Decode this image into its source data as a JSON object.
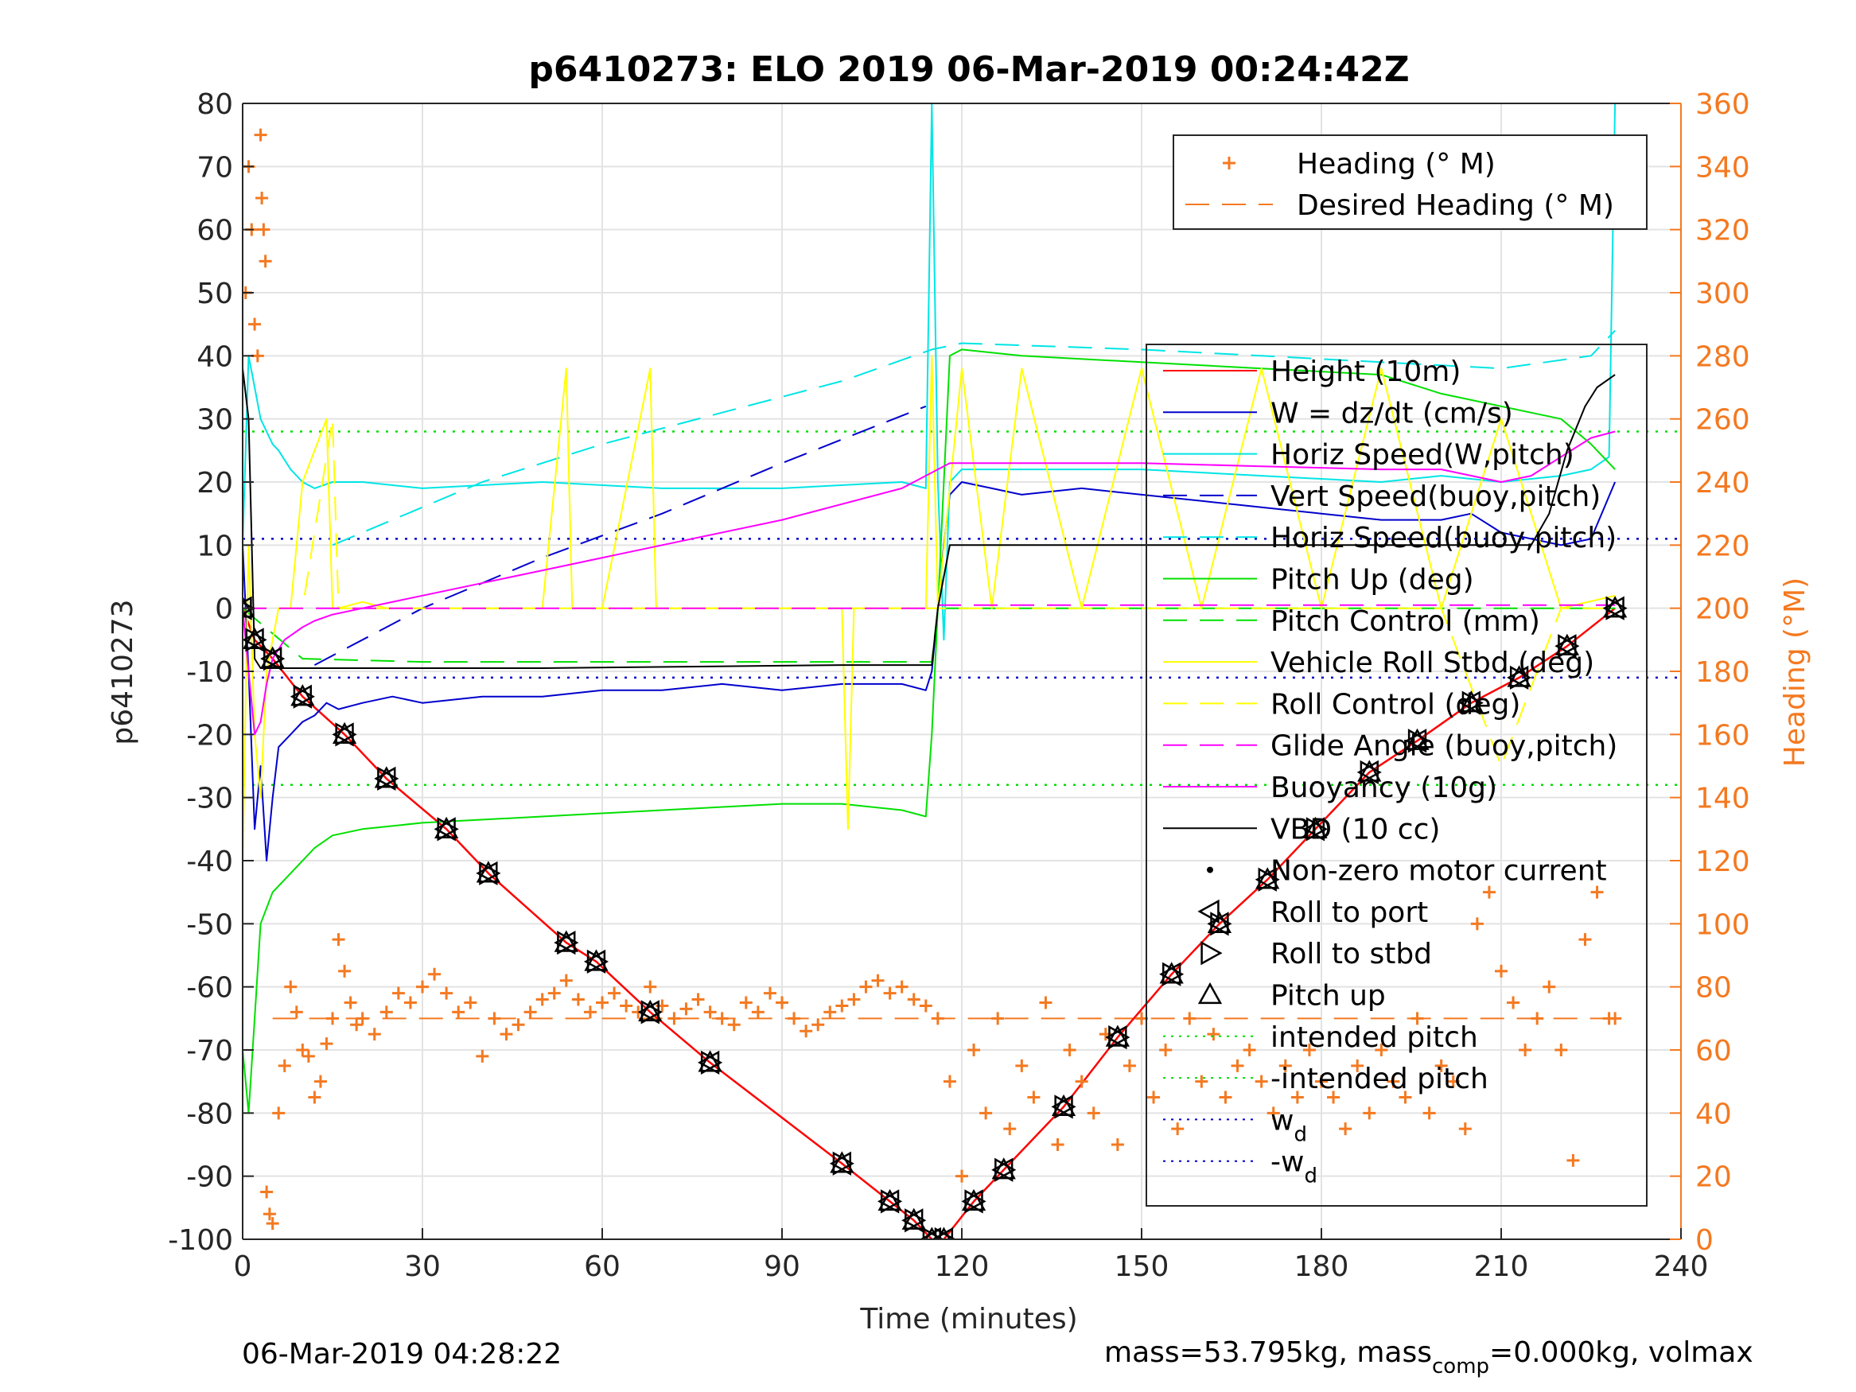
{
  "chart_data": {
    "type": "line",
    "title": "p6410273: ELO 2019 06-Mar-2019 00:24:42Z",
    "xlabel": "Time (minutes)",
    "ylabel": "p6410273",
    "ylabel_right": "Heading (°M)",
    "xlim": [
      0,
      240
    ],
    "ylim": [
      -100,
      80
    ],
    "ylim_right": [
      0,
      360
    ],
    "x_ticks": [
      "0",
      "30",
      "60",
      "90",
      "120",
      "150",
      "180",
      "210",
      "240"
    ],
    "y_ticks": [
      "-100",
      "-90",
      "-80",
      "-70",
      "-60",
      "-50",
      "-40",
      "-30",
      "-20",
      "-10",
      "0",
      "10",
      "20",
      "30",
      "40",
      "50",
      "60",
      "70",
      "80"
    ],
    "y_ticks_right": [
      "0",
      "20",
      "40",
      "60",
      "80",
      "100",
      "120",
      "140",
      "160",
      "180",
      "200",
      "220",
      "240",
      "260",
      "280",
      "300",
      "320",
      "340",
      "360"
    ],
    "grid": true,
    "legend_placement_right_axis": "top-right",
    "legend_placement_left_axis": "right",
    "footer_left": "06-Mar-2019 04:28:22",
    "footer_right": {
      "prefix": "mass=53.795kg, mass",
      "sub": "comp",
      "suffix": "=0.000kg, volmax"
    },
    "colors": {
      "height": "#ff0000",
      "w": "#0000cc",
      "horiz_speed": "#00e5e5",
      "pitch": "#00e000",
      "roll": "#ffff00",
      "glide": "#ff00ff",
      "vbd": "#000000",
      "heading": "#f47920",
      "right_axis": "#f47920"
    },
    "legend_right_axis": [
      {
        "label": "Heading (° M)",
        "color": "#f47920",
        "style": "plus"
      },
      {
        "label": "Desired Heading (° M)",
        "color": "#f47920",
        "style": "dashed"
      }
    ],
    "legend_left_axis": [
      {
        "label": "Height (10m)",
        "color": "#ff0000",
        "style": "solid"
      },
      {
        "label": "W = dz/dt (cm/s)",
        "color": "#0000cc",
        "style": "solid"
      },
      {
        "label": "Horiz Speed(W,pitch)",
        "color": "#00e5e5",
        "style": "solid"
      },
      {
        "label": "Vert Speed(buoy,pitch)",
        "color": "#0000cc",
        "style": "dashed"
      },
      {
        "label": "Horiz Speed(buoy,pitch)",
        "color": "#00e5e5",
        "style": "dashed"
      },
      {
        "label": "Pitch Up (deg)",
        "color": "#00e000",
        "style": "solid"
      },
      {
        "label": "Pitch Control (mm)",
        "color": "#00e000",
        "style": "dashed"
      },
      {
        "label": "Vehicle Roll Stbd (deg)",
        "color": "#ffff00",
        "style": "solid"
      },
      {
        "label": "Roll Control (deg)",
        "color": "#ffff00",
        "style": "dashed"
      },
      {
        "label": "Glide Angle (buoy,pitch)",
        "color": "#ff00ff",
        "style": "dashed"
      },
      {
        "label": "Buoyancy (10g)",
        "color": "#ff00ff",
        "style": "solid"
      },
      {
        "label": "VBD (10 cc)",
        "color": "#000000",
        "style": "solid"
      },
      {
        "label": "Non-zero motor current",
        "color": "#000000",
        "style": "dot"
      },
      {
        "label": "Roll to port",
        "color": "#000000",
        "style": "tri-left"
      },
      {
        "label": "Roll to stbd",
        "color": "#000000",
        "style": "tri-right"
      },
      {
        "label": "Pitch up",
        "color": "#000000",
        "style": "tri-up"
      },
      {
        "label": "intended pitch",
        "color": "#00e000",
        "style": "dotted"
      },
      {
        "label": "-intended pitch",
        "color": "#00e000",
        "style": "dotted"
      },
      {
        "label": "w",
        "sub": "d",
        "color": "#0000cc",
        "style": "dotted"
      },
      {
        "label": "-w",
        "sub": "d",
        "color": "#0000cc",
        "style": "dotted"
      }
    ],
    "reference_lines": [
      {
        "name": "intended pitch",
        "y": 28
      },
      {
        "name": "-intended pitch",
        "y": -28
      },
      {
        "name": "w_d",
        "y": 11
      },
      {
        "name": "-w_d",
        "y": -11
      }
    ],
    "desired_heading_deg": 70,
    "series": [
      {
        "name": "Height (10m)",
        "x": [
          0,
          2,
          5,
          10,
          17,
          24,
          34,
          41,
          54,
          59,
          68,
          78,
          100,
          108,
          112,
          115,
          117,
          122,
          127,
          137,
          146,
          155,
          163,
          171,
          179,
          188,
          196,
          205,
          213,
          221,
          229
        ],
        "y": [
          0,
          -5,
          -8,
          -14,
          -20,
          -27,
          -35,
          -42,
          -53,
          -56,
          -64,
          -72,
          -88,
          -94,
          -97,
          -100,
          -100,
          -94,
          -89,
          -79,
          -68,
          -58,
          -50,
          -43,
          -35,
          -26,
          -21,
          -15,
          -11,
          -6,
          0
        ]
      },
      {
        "name": "W = dz/dt (cm/s)",
        "x": [
          0,
          1,
          2,
          3,
          4,
          5,
          6,
          8,
          10,
          12,
          14,
          16,
          20,
          25,
          30,
          40,
          50,
          60,
          70,
          80,
          90,
          100,
          110,
          114,
          115,
          116,
          117,
          118,
          120,
          125,
          130,
          140,
          150,
          160,
          170,
          180,
          190,
          200,
          205,
          210,
          215,
          220,
          225,
          229
        ],
        "y": [
          10,
          -10,
          -35,
          -25,
          -40,
          -30,
          -22,
          -20,
          -18,
          -17,
          -15,
          -16,
          -15,
          -14,
          -15,
          -14,
          -14,
          -13,
          -13,
          -12,
          -13,
          -12,
          -12,
          -13,
          -10,
          0,
          10,
          18,
          20,
          19,
          18,
          19,
          18,
          17,
          16,
          15,
          14,
          14,
          15,
          12,
          11,
          10,
          11,
          20
        ]
      },
      {
        "name": "Horiz Speed(W,pitch)",
        "x": [
          0,
          1,
          2,
          3,
          4,
          5,
          6,
          8,
          10,
          12,
          15,
          20,
          30,
          50,
          70,
          90,
          110,
          114,
          115,
          116,
          117,
          118,
          120,
          130,
          150,
          170,
          190,
          200,
          210,
          220,
          225,
          228,
          229
        ],
        "y": [
          10,
          40,
          35,
          30,
          28,
          26,
          25,
          22,
          20,
          19,
          20,
          20,
          19,
          20,
          19,
          19,
          20,
          19,
          80,
          20,
          -5,
          20,
          22,
          22,
          22,
          21,
          20,
          21,
          20,
          21,
          22,
          24,
          80
        ]
      },
      {
        "name": "Vert Speed(buoy,pitch)",
        "x": [
          12,
          30,
          50,
          70,
          90,
          114
        ],
        "y": [
          -9,
          0,
          8,
          15,
          23,
          32
        ]
      },
      {
        "name": "Horiz Speed(buoy,pitch)",
        "x": [
          15,
          40,
          60,
          80,
          100,
          115,
          120,
          150,
          170,
          190,
          210,
          225,
          229
        ],
        "y": [
          10,
          20,
          26,
          31,
          36,
          41,
          42,
          41,
          40,
          39,
          38,
          40,
          44
        ]
      },
      {
        "name": "Pitch Up (deg)",
        "x": [
          0,
          1,
          2,
          3,
          5,
          8,
          12,
          15,
          20,
          30,
          50,
          70,
          90,
          100,
          110,
          114,
          115,
          116,
          117,
          118,
          120,
          130,
          150,
          170,
          190,
          200,
          210,
          220,
          225,
          229
        ],
        "y": [
          -70,
          -80,
          -65,
          -50,
          -45,
          -42,
          -38,
          -36,
          -35,
          -34,
          -33,
          -32,
          -31,
          -31,
          -32,
          -33,
          -20,
          0,
          20,
          40,
          41,
          40,
          39,
          38,
          37,
          34,
          32,
          30,
          26,
          22
        ]
      },
      {
        "name": "Pitch Control (mm)",
        "x": [
          0,
          10,
          30,
          60,
          90,
          115,
          116,
          120,
          150,
          180,
          210,
          229
        ],
        "y": [
          0,
          -8,
          -8.5,
          -8.5,
          -8.5,
          -8.5,
          0,
          0,
          0,
          0,
          0,
          0
        ]
      },
      {
        "name": "Vehicle Roll Stbd (deg)",
        "x": [
          0,
          1,
          2,
          3,
          4,
          6,
          8,
          10,
          14,
          15,
          16,
          20,
          24,
          30,
          40,
          50,
          54,
          55,
          56,
          60,
          68,
          69,
          70,
          80,
          90,
          100,
          101,
          102,
          110,
          114,
          115,
          116,
          120,
          125,
          130,
          140,
          150,
          160,
          170,
          180,
          190,
          200,
          210,
          220,
          229
        ],
        "y": [
          -40,
          10,
          -20,
          -30,
          -10,
          0,
          0,
          20,
          30,
          0,
          0,
          1,
          0,
          0,
          0,
          0,
          38,
          0,
          0,
          0,
          38,
          0,
          0,
          0,
          0,
          0,
          -35,
          0,
          0,
          0,
          40,
          0,
          38,
          0,
          38,
          0,
          38,
          0,
          38,
          0,
          38,
          0,
          30,
          0,
          2
        ]
      },
      {
        "name": "Roll Control (deg)",
        "x": [
          0,
          5,
          10,
          15,
          16,
          17,
          25,
          35,
          45,
          60,
          75,
          90,
          100,
          110,
          115,
          120,
          150,
          180,
          200,
          210,
          220,
          229
        ],
        "y": [
          0,
          0,
          0,
          30,
          0,
          0,
          0,
          0,
          0,
          0,
          0,
          0,
          0,
          0,
          0,
          0,
          0,
          0,
          0,
          -25,
          0,
          0
        ]
      },
      {
        "name": "Glide Angle (buoy,pitch)",
        "x": [
          0,
          50,
          100,
          115,
          116,
          150,
          200,
          229
        ],
        "y": [
          0,
          0,
          0,
          0,
          0.5,
          0.5,
          0.5,
          0.5
        ]
      },
      {
        "name": "Buoyancy (10g)",
        "x": [
          0,
          1,
          2,
          3,
          4,
          5,
          7,
          10,
          12,
          15,
          20,
          30,
          50,
          70,
          90,
          110,
          118,
          130,
          150,
          170,
          190,
          200,
          210,
          215,
          220,
          225,
          229
        ],
        "y": [
          0,
          -10,
          -20,
          -18,
          -12,
          -8,
          -5,
          -3,
          -2,
          -1,
          0,
          2,
          6,
          10,
          14,
          19,
          23,
          23,
          23,
          22.5,
          22,
          22,
          20,
          21,
          24,
          27,
          28
        ]
      },
      {
        "name": "VBD (10 cc)",
        "x": [
          0,
          1,
          2,
          3,
          20,
          50,
          100,
          114,
          115,
          116,
          118,
          120,
          150,
          180,
          200,
          210,
          212,
          215,
          218,
          221,
          224,
          226,
          229
        ],
        "y": [
          38,
          30,
          -8,
          -9.5,
          -9.5,
          -9.5,
          -9,
          -9,
          -9,
          0,
          10,
          10,
          10,
          10,
          10,
          10,
          10,
          10,
          15,
          25,
          32,
          35,
          37
        ]
      }
    ],
    "heading_series": {
      "name": "Heading (° M)",
      "x": [
        0.5,
        1,
        1.5,
        2,
        2.5,
        3,
        3.2,
        3.5,
        3.8,
        4,
        4.5,
        5,
        6,
        7,
        8,
        9,
        10,
        11,
        12,
        13,
        14,
        15,
        16,
        17,
        18,
        19,
        20,
        22,
        24,
        26,
        28,
        30,
        32,
        34,
        36,
        38,
        40,
        42,
        44,
        46,
        48,
        50,
        52,
        54,
        56,
        58,
        60,
        62,
        64,
        66,
        68,
        70,
        72,
        74,
        76,
        78,
        80,
        82,
        84,
        86,
        88,
        90,
        92,
        94,
        96,
        98,
        100,
        102,
        104,
        106,
        108,
        110,
        112,
        114,
        116,
        118,
        120,
        122,
        124,
        126,
        128,
        130,
        132,
        134,
        136,
        138,
        140,
        142,
        144,
        146,
        148,
        150,
        152,
        154,
        156,
        158,
        160,
        162,
        164,
        166,
        168,
        170,
        172,
        174,
        176,
        178,
        180,
        182,
        184,
        186,
        188,
        190,
        192,
        194,
        196,
        198,
        200,
        202,
        204,
        206,
        208,
        210,
        212,
        214,
        216,
        218,
        220,
        222,
        224,
        226,
        228,
        229
      ],
      "y": [
        300,
        340,
        320,
        290,
        280,
        350,
        330,
        320,
        310,
        15,
        8,
        5,
        40,
        55,
        80,
        72,
        60,
        58,
        45,
        50,
        62,
        70,
        95,
        85,
        75,
        68,
        70,
        65,
        72,
        78,
        75,
        80,
        84,
        78,
        72,
        75,
        58,
        70,
        65,
        68,
        72,
        76,
        78,
        82,
        76,
        72,
        75,
        78,
        74,
        72,
        80,
        74,
        70,
        73,
        76,
        72,
        70,
        68,
        75,
        72,
        78,
        75,
        70,
        66,
        68,
        72,
        74,
        76,
        80,
        82,
        78,
        80,
        76,
        74,
        70,
        50,
        20,
        60,
        40,
        70,
        35,
        55,
        45,
        75,
        30,
        60,
        50,
        40,
        65,
        30,
        55,
        70,
        45,
        60,
        35,
        70,
        50,
        65,
        45,
        55,
        60,
        50,
        40,
        55,
        45,
        60,
        50,
        45,
        35,
        55,
        40,
        60,
        50,
        45,
        70,
        40,
        55,
        50,
        35,
        100,
        110,
        85,
        75,
        60,
        70,
        80,
        60,
        25,
        95,
        110,
        70,
        70
      ]
    }
  }
}
